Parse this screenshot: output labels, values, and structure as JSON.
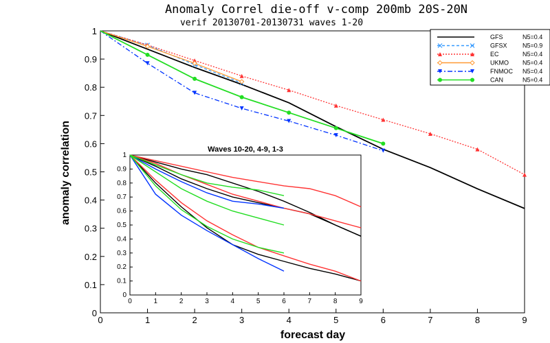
{
  "chart_data": [
    {
      "type": "line",
      "title": "Anomaly Correl die-off  v-comp 200mb 20S-20N",
      "subtitle": "verif 20130701-20130731  waves 1-20",
      "xlabel": "forecast day",
      "ylabel": "anomaly correlation",
      "xlim": [
        0,
        9
      ],
      "ylim": [
        0,
        1
      ],
      "x_ticks": [
        "0",
        "1",
        "2",
        "3",
        "4",
        "5",
        "6",
        "7",
        "8",
        "9"
      ],
      "y_ticks": [
        "0",
        "0.1",
        "0.2",
        "0.3",
        "0.4",
        "0.5",
        "0.6",
        "0.7",
        "0.8",
        "0.9",
        "1"
      ],
      "legend_position": "top-right",
      "series": [
        {
          "name": "GFS",
          "n": "N5=0.4",
          "color": "#000000",
          "dash": "solid",
          "marker": "none",
          "x": [
            0,
            1,
            2,
            3,
            4,
            5,
            6,
            7,
            8,
            9
          ],
          "values": [
            1.0,
            0.935,
            0.87,
            0.81,
            0.745,
            0.66,
            0.58,
            0.515,
            0.44,
            0.37
          ]
        },
        {
          "name": "GFSX",
          "n": "N5=0.9",
          "color": "#3399ff",
          "dash": "dashed",
          "marker": "x",
          "x": [
            0,
            1,
            2,
            3
          ],
          "values": [
            1.0,
            0.95,
            0.88,
            0.815
          ]
        },
        {
          "name": "EC",
          "n": "N5=0.4",
          "color": "#ff3333",
          "dash": "dotted",
          "marker": "triangle",
          "x": [
            0,
            1,
            2,
            3,
            4,
            5,
            6,
            7,
            8,
            9
          ],
          "values": [
            1.0,
            0.95,
            0.895,
            0.84,
            0.79,
            0.735,
            0.685,
            0.635,
            0.58,
            0.49
          ]
        },
        {
          "name": "UKMO",
          "n": "N5=0.4",
          "color": "#ff9933",
          "dash": "solid",
          "marker": "diamond",
          "x": [
            0,
            1,
            2,
            3
          ],
          "values": [
            1.0,
            0.945,
            0.885,
            0.82
          ]
        },
        {
          "name": "FNMOC",
          "n": "N5=0.4",
          "color": "#0033ff",
          "dash": "dashdot",
          "marker": "down-triangle",
          "x": [
            0,
            1,
            2,
            3,
            4,
            5,
            6
          ],
          "values": [
            1.0,
            0.885,
            0.78,
            0.725,
            0.68,
            0.63,
            0.575
          ]
        },
        {
          "name": "CAN",
          "n": "N5=0.4",
          "color": "#22dd22",
          "dash": "solid",
          "marker": "dot",
          "x": [
            0,
            1,
            2,
            3,
            4,
            5,
            6
          ],
          "values": [
            1.0,
            0.915,
            0.83,
            0.765,
            0.71,
            0.655,
            0.6
          ]
        }
      ]
    },
    {
      "type": "line",
      "title": "Waves 10-20, 4-9, 1-3",
      "xlim": [
        0,
        9
      ],
      "ylim": [
        0,
        1
      ],
      "x_ticks": [
        "0",
        "1",
        "2",
        "3",
        "4",
        "5",
        "6",
        "7",
        "8",
        "9"
      ],
      "y_ticks": [
        "0",
        "0.1",
        "0.2",
        "0.3",
        "0.4",
        "0.5",
        "0.6",
        "0.7",
        "0.8",
        "0.9",
        "1"
      ],
      "series": [
        {
          "name": "GFS",
          "group": "1-3",
          "color": "#000000",
          "x": [
            0,
            1,
            2,
            3,
            4,
            5,
            6,
            7,
            8,
            9
          ],
          "values": [
            1.0,
            0.95,
            0.9,
            0.86,
            0.8,
            0.74,
            0.67,
            0.59,
            0.5,
            0.42
          ]
        },
        {
          "name": "GFS",
          "group": "4-9",
          "color": "#000000",
          "x": [
            0,
            1,
            2,
            3,
            4,
            5,
            6,
            7,
            8,
            9
          ],
          "values": [
            1.0,
            0.92,
            0.83,
            0.76,
            0.7,
            0.66,
            0.62,
            0.58,
            0.5,
            0.42
          ]
        },
        {
          "name": "GFS",
          "group": "10-20",
          "color": "#000000",
          "x": [
            0,
            1,
            2,
            3,
            4,
            5,
            6,
            7,
            8,
            9
          ],
          "values": [
            1.0,
            0.8,
            0.63,
            0.48,
            0.36,
            0.29,
            0.24,
            0.19,
            0.15,
            0.1
          ]
        },
        {
          "name": "EC",
          "group": "1-3",
          "color": "#ff3333",
          "x": [
            0,
            1,
            2,
            3,
            4,
            5,
            6,
            7,
            8,
            9
          ],
          "values": [
            1.0,
            0.96,
            0.92,
            0.88,
            0.84,
            0.81,
            0.78,
            0.76,
            0.71,
            0.63
          ]
        },
        {
          "name": "EC",
          "group": "4-9",
          "color": "#ff3333",
          "x": [
            0,
            1,
            2,
            3,
            4,
            5,
            6,
            7,
            8,
            9
          ],
          "values": [
            1.0,
            0.94,
            0.86,
            0.79,
            0.72,
            0.67,
            0.62,
            0.58,
            0.53,
            0.48
          ]
        },
        {
          "name": "EC",
          "group": "10-20",
          "color": "#ff3333",
          "x": [
            0,
            1,
            2,
            3,
            4,
            5,
            6,
            7,
            8,
            9
          ],
          "values": [
            1.0,
            0.82,
            0.66,
            0.53,
            0.43,
            0.34,
            0.28,
            0.22,
            0.17,
            0.1
          ]
        },
        {
          "name": "FNMOC",
          "group": "4-9",
          "color": "#0033ff",
          "x": [
            0,
            1,
            2,
            3,
            4,
            5,
            6
          ],
          "values": [
            1.0,
            0.9,
            0.81,
            0.73,
            0.67,
            0.65,
            0.62
          ]
        },
        {
          "name": "FNMOC",
          "group": "10-20",
          "color": "#0033ff",
          "x": [
            0,
            1,
            2,
            3,
            4,
            5,
            6
          ],
          "values": [
            1.0,
            0.72,
            0.57,
            0.46,
            0.36,
            0.26,
            0.17
          ]
        },
        {
          "name": "CAN",
          "group": "1-3",
          "color": "#22dd22",
          "x": [
            0,
            1,
            2,
            3,
            4,
            5,
            6
          ],
          "values": [
            1.0,
            0.93,
            0.86,
            0.8,
            0.77,
            0.75,
            0.71
          ]
        },
        {
          "name": "CAN",
          "group": "4-9",
          "color": "#22dd22",
          "x": [
            0,
            1,
            2,
            3,
            4,
            5,
            6
          ],
          "values": [
            1.0,
            0.88,
            0.76,
            0.67,
            0.6,
            0.55,
            0.5
          ]
        },
        {
          "name": "CAN",
          "group": "10-20",
          "color": "#22dd22",
          "x": [
            0,
            1,
            2,
            3,
            4,
            5,
            6
          ],
          "values": [
            1.0,
            0.78,
            0.61,
            0.49,
            0.4,
            0.34,
            0.3
          ]
        }
      ]
    }
  ]
}
